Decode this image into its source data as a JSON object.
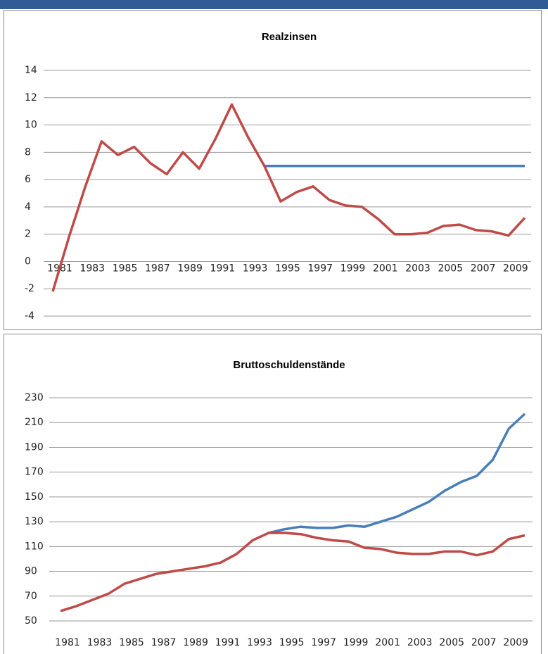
{
  "chart_data": [
    {
      "type": "line",
      "title": "Realzinsen",
      "categories": [
        "1981",
        null,
        "1983",
        null,
        "1985",
        null,
        "1987",
        null,
        "1989",
        null,
        "1991",
        null,
        "1993",
        null,
        "1995",
        null,
        "1997",
        null,
        "1999",
        null,
        "2001",
        null,
        "2003",
        null,
        "2005",
        null,
        "2007",
        null,
        "2009",
        null
      ],
      "series": [
        {
          "color": "#4a7ebb",
          "values": [
            null,
            null,
            null,
            null,
            null,
            null,
            null,
            null,
            null,
            null,
            null,
            null,
            null,
            7.0,
            7.0,
            7.0,
            7.0,
            7.0,
            7.0,
            7.0,
            7.0,
            7.0,
            7.0,
            7.0,
            7.0,
            7.0,
            7.0,
            7.0,
            7.0,
            7.0
          ]
        },
        {
          "color": "#be4b48",
          "values": [
            -2.2,
            1.8,
            5.5,
            8.8,
            7.8,
            8.4,
            7.2,
            6.4,
            8.0,
            6.8,
            9.0,
            11.5,
            9.1,
            7.0,
            4.4,
            5.1,
            5.5,
            4.5,
            4.1,
            4.0,
            3.1,
            2.0,
            2.0,
            2.1,
            2.6,
            2.7,
            2.3,
            2.2,
            1.9,
            3.2
          ]
        }
      ],
      "ylim": [
        -4,
        14
      ],
      "yticks": [
        -4,
        -2,
        0,
        2,
        4,
        6,
        8,
        10,
        12,
        14
      ],
      "grid": true
    },
    {
      "type": "line",
      "title": "Bruttoschuldenstände",
      "categories": [
        "1981",
        null,
        "1983",
        null,
        "1985",
        null,
        "1987",
        null,
        "1989",
        null,
        "1991",
        null,
        "1993",
        null,
        "1995",
        null,
        "1997",
        null,
        "1999",
        null,
        "2001",
        null,
        "2003",
        null,
        "2005",
        null,
        "2007",
        null,
        "2009",
        null
      ],
      "series": [
        {
          "color": "#4a7ebb",
          "values": [
            null,
            null,
            null,
            null,
            null,
            null,
            null,
            null,
            null,
            null,
            null,
            null,
            null,
            121,
            124,
            126,
            125,
            125,
            127,
            126,
            130,
            134,
            140,
            146,
            155,
            162,
            167,
            180,
            205,
            217
          ]
        },
        {
          "color": "#be4b48",
          "values": [
            58,
            62,
            67,
            72,
            80,
            84,
            88,
            90,
            92,
            94,
            97,
            104,
            115,
            121,
            121,
            120,
            117,
            115,
            114,
            109,
            108,
            105,
            104,
            104,
            106,
            106,
            103,
            106,
            116,
            119
          ]
        }
      ],
      "ylim": [
        50,
        230
      ],
      "yticks": [
        50,
        70,
        90,
        110,
        130,
        150,
        170,
        190,
        210,
        230
      ],
      "grid": true
    }
  ]
}
